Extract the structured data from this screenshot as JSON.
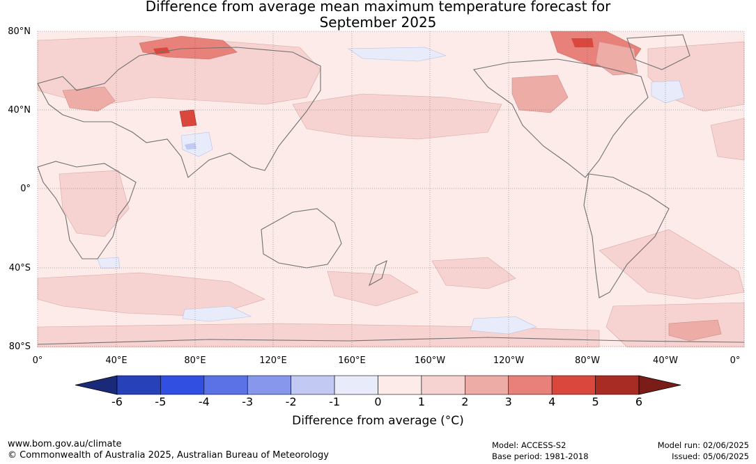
{
  "title_line1": "Difference from average mean maximum temperature forecast for",
  "title_line2": "September 2025",
  "map": {
    "lat_labels": [
      "80°N",
      "40°N",
      "0°",
      "40°S",
      "80°S"
    ],
    "lon_labels": [
      "0°",
      "40°E",
      "80°E",
      "120°E",
      "160°E",
      "160°W",
      "120°W",
      "80°W",
      "40°W",
      "0°"
    ]
  },
  "colorbar": {
    "ticks": [
      "-6",
      "-5",
      "-4",
      "-3",
      "-2",
      "-1",
      "0",
      "1",
      "2",
      "3",
      "4",
      "5",
      "6"
    ],
    "colors": [
      "#1b2a78",
      "#2742b8",
      "#3150e2",
      "#5a72e6",
      "#8798ec",
      "#c2c9f3",
      "#e8ebf9",
      "#fcebe9",
      "#f6d3d0",
      "#eeaca7",
      "#e8817a",
      "#d9473d",
      "#a82b24",
      "#7a1d18"
    ],
    "label": "Difference from average (°C)"
  },
  "footer": {
    "website": "www.bom.gov.au/climate",
    "copyright": "© Commonwealth of Australia 2025, Australian Bureau of Meteorology",
    "model": "Model: ACCESS-S2",
    "base_period": "Base period: 1981-2018",
    "model_run": "Model run: 02/06/2025",
    "issued": "Issued: 05/06/2025"
  }
}
